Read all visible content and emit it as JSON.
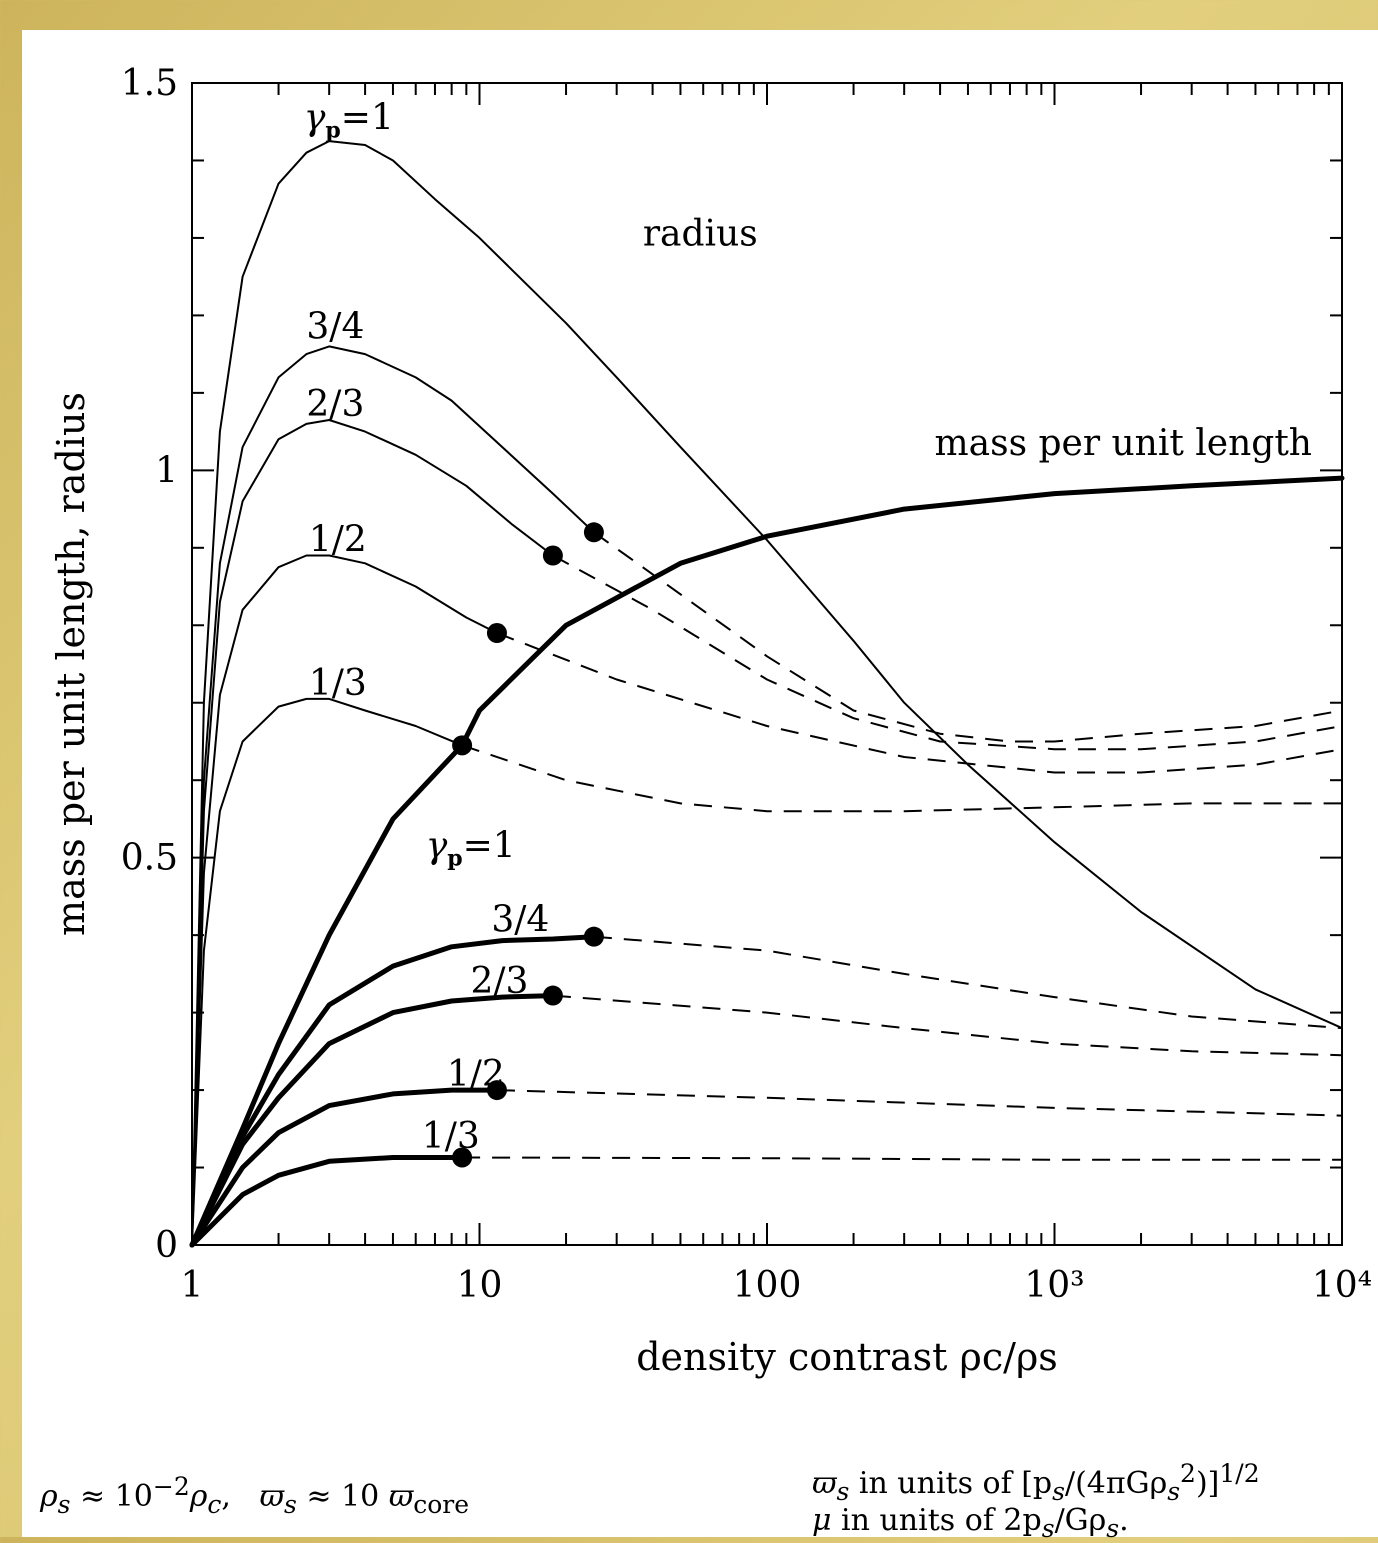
{
  "colors": {
    "frame": "#d8c070",
    "panel": "#ffffff",
    "ink": "#000000"
  },
  "chart_data": {
    "type": "line",
    "title": "",
    "xlabel": "density contrast ρc/ρs",
    "ylabel": "mass per unit length, radius",
    "xscale": "log",
    "xlim": [
      1,
      10000
    ],
    "ylim": [
      0,
      1.5
    ],
    "x_ticks": [
      1,
      10,
      100,
      1000,
      10000
    ],
    "x_tick_labels": [
      "1",
      "10",
      "100",
      "10³",
      "10⁴"
    ],
    "y_ticks": [
      0,
      0.5,
      1,
      1.5
    ],
    "y_tick_labels": [
      "0",
      "0.5",
      "1",
      "1.5"
    ],
    "grid": false,
    "annotations": {
      "radius": "radius",
      "mass": "mass per unit length",
      "gamma_prefix": "γ",
      "gamma_sub": "p",
      "gamma_value": "=1"
    },
    "series": [
      {
        "name": "1",
        "kind": "radius",
        "label": "γp=1",
        "style": "solid",
        "points": [
          [
            1,
            0
          ],
          [
            1.1,
            0.7
          ],
          [
            1.25,
            1.05
          ],
          [
            1.5,
            1.25
          ],
          [
            2,
            1.37
          ],
          [
            2.5,
            1.41
          ],
          [
            3,
            1.425
          ],
          [
            4,
            1.42
          ],
          [
            5,
            1.4
          ],
          [
            7,
            1.35
          ],
          [
            10,
            1.3
          ],
          [
            20,
            1.19
          ],
          [
            30,
            1.12
          ],
          [
            50,
            1.03
          ],
          [
            100,
            0.91
          ],
          [
            200,
            0.78
          ],
          [
            300,
            0.7
          ],
          [
            500,
            0.62
          ],
          [
            1000,
            0.52
          ],
          [
            2000,
            0.43
          ],
          [
            5000,
            0.33
          ],
          [
            10000,
            0.28
          ]
        ]
      },
      {
        "name": "3/4",
        "kind": "radius",
        "label": "3/4",
        "style": "solid",
        "points": [
          [
            1,
            0
          ],
          [
            1.1,
            0.6
          ],
          [
            1.25,
            0.88
          ],
          [
            1.5,
            1.03
          ],
          [
            2,
            1.12
          ],
          [
            2.5,
            1.15
          ],
          [
            3,
            1.16
          ],
          [
            4,
            1.15
          ],
          [
            6,
            1.12
          ],
          [
            8,
            1.09
          ],
          [
            12,
            1.03
          ],
          [
            18,
            0.97
          ],
          [
            25,
            0.92
          ]
        ]
      },
      {
        "name": "3/4",
        "kind": "radius",
        "label": "",
        "style": "dashed",
        "points": [
          [
            25,
            0.92
          ],
          [
            50,
            0.84
          ],
          [
            100,
            0.76
          ],
          [
            200,
            0.69
          ],
          [
            400,
            0.66
          ],
          [
            700,
            0.65
          ],
          [
            1000,
            0.65
          ],
          [
            2000,
            0.66
          ],
          [
            5000,
            0.67
          ],
          [
            10000,
            0.69
          ]
        ]
      },
      {
        "name": "2/3",
        "kind": "radius",
        "label": "2/3",
        "style": "solid",
        "points": [
          [
            1,
            0
          ],
          [
            1.1,
            0.56
          ],
          [
            1.25,
            0.83
          ],
          [
            1.5,
            0.96
          ],
          [
            2,
            1.04
          ],
          [
            2.5,
            1.06
          ],
          [
            3,
            1.065
          ],
          [
            4,
            1.05
          ],
          [
            6,
            1.02
          ],
          [
            9,
            0.98
          ],
          [
            13,
            0.93
          ],
          [
            18,
            0.89
          ]
        ]
      },
      {
        "name": "2/3",
        "kind": "radius",
        "label": "",
        "style": "dashed",
        "points": [
          [
            18,
            0.89
          ],
          [
            40,
            0.82
          ],
          [
            100,
            0.73
          ],
          [
            200,
            0.68
          ],
          [
            400,
            0.65
          ],
          [
            1000,
            0.64
          ],
          [
            2000,
            0.64
          ],
          [
            5000,
            0.65
          ],
          [
            10000,
            0.67
          ]
        ]
      },
      {
        "name": "1/2",
        "kind": "radius",
        "label": "1/2",
        "style": "solid",
        "points": [
          [
            1,
            0
          ],
          [
            1.1,
            0.48
          ],
          [
            1.25,
            0.71
          ],
          [
            1.5,
            0.82
          ],
          [
            2,
            0.875
          ],
          [
            2.5,
            0.89
          ],
          [
            3,
            0.89
          ],
          [
            4,
            0.88
          ],
          [
            6,
            0.85
          ],
          [
            9,
            0.81
          ],
          [
            11.5,
            0.79
          ]
        ]
      },
      {
        "name": "1/2",
        "kind": "radius",
        "label": "",
        "style": "dashed",
        "points": [
          [
            11.5,
            0.79
          ],
          [
            30,
            0.73
          ],
          [
            100,
            0.67
          ],
          [
            300,
            0.63
          ],
          [
            1000,
            0.61
          ],
          [
            2000,
            0.61
          ],
          [
            5000,
            0.62
          ],
          [
            10000,
            0.64
          ]
        ]
      },
      {
        "name": "1/3",
        "kind": "radius",
        "label": "1/3",
        "style": "solid",
        "points": [
          [
            1,
            0
          ],
          [
            1.1,
            0.38
          ],
          [
            1.25,
            0.56
          ],
          [
            1.5,
            0.65
          ],
          [
            2,
            0.695
          ],
          [
            2.5,
            0.705
          ],
          [
            3,
            0.705
          ],
          [
            4,
            0.69
          ],
          [
            6,
            0.67
          ],
          [
            8.7,
            0.645
          ]
        ]
      },
      {
        "name": "1/3",
        "kind": "radius",
        "label": "",
        "style": "dashed",
        "points": [
          [
            8.7,
            0.645
          ],
          [
            20,
            0.6
          ],
          [
            50,
            0.57
          ],
          [
            100,
            0.56
          ],
          [
            300,
            0.56
          ],
          [
            1000,
            0.565
          ],
          [
            3000,
            0.57
          ],
          [
            10000,
            0.57
          ]
        ]
      },
      {
        "name": "1",
        "kind": "mass",
        "label": "γp=1",
        "style": "solid",
        "points": [
          [
            1,
            0
          ],
          [
            1.5,
            0.15
          ],
          [
            2,
            0.26
          ],
          [
            3,
            0.4
          ],
          [
            5,
            0.55
          ],
          [
            8.7,
            0.645
          ],
          [
            10,
            0.69
          ],
          [
            20,
            0.8
          ],
          [
            50,
            0.88
          ],
          [
            100,
            0.915
          ],
          [
            300,
            0.95
          ],
          [
            1000,
            0.97
          ],
          [
            3000,
            0.98
          ],
          [
            10000,
            0.99
          ]
        ]
      },
      {
        "name": "3/4",
        "kind": "mass",
        "label": "3/4",
        "style": "solid",
        "points": [
          [
            1,
            0
          ],
          [
            1.5,
            0.14
          ],
          [
            2,
            0.22
          ],
          [
            3,
            0.31
          ],
          [
            5,
            0.36
          ],
          [
            8,
            0.385
          ],
          [
            12,
            0.393
          ],
          [
            18,
            0.395
          ],
          [
            25,
            0.398
          ]
        ]
      },
      {
        "name": "3/4",
        "kind": "mass",
        "label": "",
        "style": "dashed",
        "points": [
          [
            25,
            0.398
          ],
          [
            100,
            0.38
          ],
          [
            300,
            0.35
          ],
          [
            1000,
            0.32
          ],
          [
            3000,
            0.295
          ],
          [
            10000,
            0.28
          ]
        ]
      },
      {
        "name": "2/3",
        "kind": "mass",
        "label": "2/3",
        "style": "solid",
        "points": [
          [
            1,
            0
          ],
          [
            1.5,
            0.13
          ],
          [
            2,
            0.19
          ],
          [
            3,
            0.26
          ],
          [
            5,
            0.3
          ],
          [
            8,
            0.315
          ],
          [
            12,
            0.32
          ],
          [
            18,
            0.322
          ]
        ]
      },
      {
        "name": "2/3",
        "kind": "mass",
        "label": "",
        "style": "dashed",
        "points": [
          [
            18,
            0.322
          ],
          [
            100,
            0.3
          ],
          [
            300,
            0.28
          ],
          [
            1000,
            0.26
          ],
          [
            3000,
            0.25
          ],
          [
            10000,
            0.245
          ]
        ]
      },
      {
        "name": "1/2",
        "kind": "mass",
        "label": "1/2",
        "style": "solid",
        "points": [
          [
            1,
            0
          ],
          [
            1.5,
            0.1
          ],
          [
            2,
            0.145
          ],
          [
            3,
            0.18
          ],
          [
            5,
            0.195
          ],
          [
            8,
            0.2
          ],
          [
            11.5,
            0.2
          ]
        ]
      },
      {
        "name": "1/2",
        "kind": "mass",
        "label": "",
        "style": "dashed",
        "points": [
          [
            11.5,
            0.2
          ],
          [
            100,
            0.19
          ],
          [
            1000,
            0.177
          ],
          [
            10000,
            0.167
          ]
        ]
      },
      {
        "name": "1/3",
        "kind": "mass",
        "label": "1/3",
        "style": "solid",
        "points": [
          [
            1,
            0
          ],
          [
            1.5,
            0.065
          ],
          [
            2,
            0.09
          ],
          [
            3,
            0.108
          ],
          [
            5,
            0.113
          ],
          [
            8.7,
            0.113
          ]
        ]
      },
      {
        "name": "1/3",
        "kind": "mass",
        "label": "",
        "style": "dashed",
        "points": [
          [
            8.7,
            0.113
          ],
          [
            100,
            0.112
          ],
          [
            1000,
            0.11
          ],
          [
            10000,
            0.11
          ]
        ]
      }
    ],
    "markers": [
      {
        "series": "3/4",
        "kind": "radius",
        "x": 25,
        "y": 0.92
      },
      {
        "series": "2/3",
        "kind": "radius",
        "x": 18,
        "y": 0.89
      },
      {
        "series": "1/2",
        "kind": "radius",
        "x": 11.5,
        "y": 0.79
      },
      {
        "series": "1/3",
        "kind": "radius",
        "x": 8.7,
        "y": 0.645
      },
      {
        "series": "3/4",
        "kind": "mass",
        "x": 25,
        "y": 0.398
      },
      {
        "series": "2/3",
        "kind": "mass",
        "x": 18,
        "y": 0.322
      },
      {
        "series": "1/2",
        "kind": "mass",
        "x": 11.5,
        "y": 0.2
      },
      {
        "series": "1/3",
        "kind": "mass",
        "x": 8.7,
        "y": 0.113
      }
    ]
  },
  "footnotes": {
    "left_rho": "ρ",
    "left_rho_sub": "s",
    "left_approx": " ≈ 10",
    "left_exp": "−2",
    "left_rho_c": "ρ",
    "left_rho_c_sub": "c",
    "left_mid": ",   ",
    "left_pi": "ϖ",
    "left_pi_sub": "s",
    "left_approx2": " ≈ 10 ",
    "left_pi2": "ϖ",
    "left_pi2_sub": "core",
    "right_line1_pi": "ϖ",
    "right_line1_pi_sub": "s",
    "right_line1_text": " in units of [p",
    "right_line1_sub_s": "s",
    "right_line1_mid": "/(4πGρ",
    "right_line1_sub_s2": "s",
    "right_line1_sup_2": "2",
    "right_line1_end": ")]",
    "right_line1_exp": "1/2",
    "right_line2_mu": "μ",
    "right_line2_text": " in units of 2p",
    "right_line2_sub_s": "s",
    "right_line2_mid": "/Gρ",
    "right_line2_sub_s2": "s",
    "right_line2_end": "."
  }
}
